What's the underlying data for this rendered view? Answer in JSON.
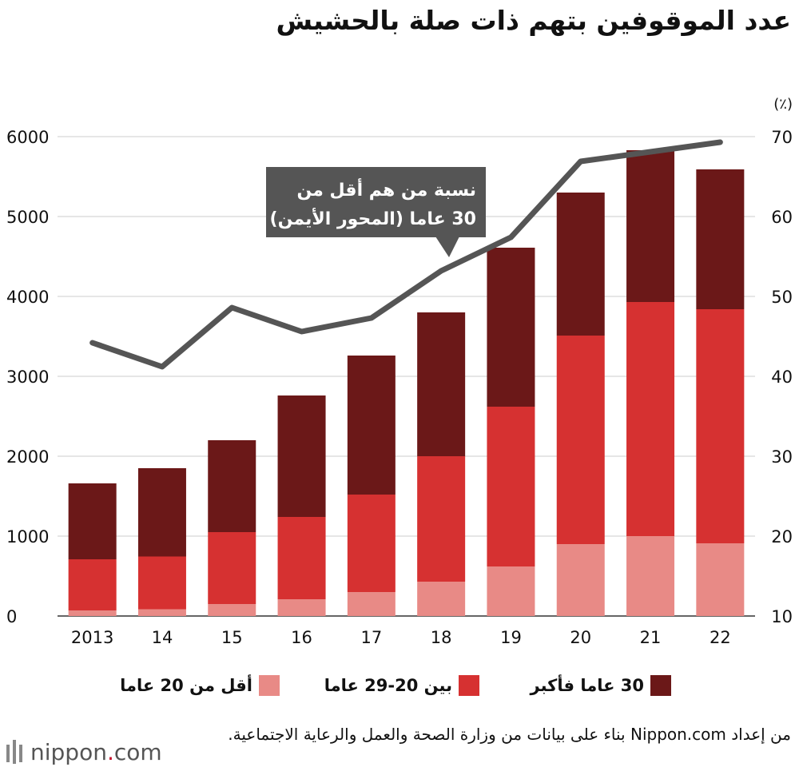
{
  "title": "عدد الموقوفين بتهم ذات صلة بالحشيش",
  "chart_data": {
    "type": "bar",
    "stacked": true,
    "categories": [
      "2013",
      "14",
      "15",
      "16",
      "17",
      "18",
      "19",
      "20",
      "21",
      "22"
    ],
    "series": [
      {
        "name": "أقل من 20 عاما",
        "color": "#e88a86",
        "values": [
          70,
          85,
          150,
          210,
          300,
          430,
          620,
          900,
          1000,
          910
        ]
      },
      {
        "name": "بين 20-29 عاما",
        "color": "#d63131",
        "values": [
          640,
          660,
          900,
          1030,
          1220,
          1570,
          2000,
          2610,
          2930,
          2930
        ]
      },
      {
        "name": "30 عاما فأكبر",
        "color": "#6b1818",
        "values": [
          950,
          1105,
          1150,
          1520,
          1740,
          1800,
          1990,
          1790,
          1900,
          1750
        ]
      }
    ],
    "line": {
      "name": "نسبة من هم أقل من 30 عاما (المحور الأيمن)",
      "color": "#555555",
      "values": [
        44.2,
        41.2,
        48.6,
        45.6,
        47.3,
        53.2,
        57.4,
        66.9,
        68.1,
        69.3
      ]
    },
    "y_left": {
      "min": 0,
      "max": 6000,
      "ticks": [
        0,
        1000,
        2000,
        3000,
        4000,
        5000,
        6000
      ]
    },
    "y_right": {
      "min": 10,
      "max": 70,
      "unit": "(٪)",
      "ticks": [
        10,
        20,
        30,
        40,
        50,
        60,
        70
      ]
    },
    "annotation": [
      "نسبة من هم أقل من",
      "30 عاما (المحور الأيمن)"
    ],
    "grid": true
  },
  "legend": [
    {
      "label": "30 عاما فأكبر",
      "color": "#6b1818"
    },
    {
      "label": "بين 20-29 عاما",
      "color": "#d63131"
    },
    {
      "label": "أقل من 20 عاما",
      "color": "#e88a86"
    }
  ],
  "source": "من إعداد Nippon.com بناء على بيانات من وزارة الصحة والعمل والرعاية الاجتماعية.",
  "logo": {
    "name": "nippon",
    "dot": ".",
    "suffix": "com"
  }
}
